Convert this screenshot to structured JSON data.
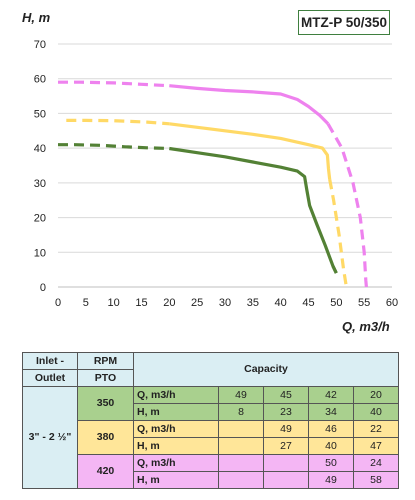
{
  "model": "MTZ-P 50/350",
  "chart_data": {
    "type": "line",
    "ylabel": "H, m",
    "xlabel": "Q, m3/h",
    "xlim": [
      0,
      60
    ],
    "ylim": [
      0,
      70
    ],
    "x_ticks": [
      0,
      5,
      10,
      15,
      20,
      25,
      30,
      35,
      40,
      45,
      50,
      55,
      60
    ],
    "y_ticks": [
      0,
      10,
      20,
      30,
      40,
      50,
      60,
      70
    ],
    "grid": "horizontal",
    "series": [
      {
        "color": "#538135",
        "dashed_points": [
          [
            0,
            41
          ],
          [
            3,
            41
          ],
          [
            8,
            40.8
          ],
          [
            12,
            40.4
          ],
          [
            16,
            40.1
          ],
          [
            20,
            39.9
          ]
        ],
        "solid_points": [
          [
            20,
            39.9
          ],
          [
            25,
            38.7
          ],
          [
            30,
            37.5
          ],
          [
            35,
            36
          ],
          [
            40,
            34.5
          ],
          [
            43,
            33.4
          ],
          [
            44.3,
            31.8
          ],
          [
            44.7,
            28
          ],
          [
            45.2,
            23.5
          ],
          [
            46.5,
            18
          ],
          [
            48,
            12
          ],
          [
            49.4,
            6
          ],
          [
            50,
            4
          ]
        ],
        "dashed_tail": [
          [
            49.4,
            6
          ],
          [
            50,
            4
          ]
        ]
      },
      {
        "color": "#ffd966",
        "dashed_points": [
          [
            1.5,
            48
          ],
          [
            5,
            48
          ],
          [
            10,
            47.9
          ],
          [
            16,
            47.5
          ],
          [
            20,
            47
          ]
        ],
        "solid_points": [
          [
            20,
            47
          ],
          [
            25,
            46
          ],
          [
            30,
            45
          ],
          [
            35,
            44
          ],
          [
            40,
            42.8
          ],
          [
            45,
            41
          ],
          [
            47.5,
            40
          ],
          [
            48.4,
            38
          ],
          [
            48.6,
            34
          ],
          [
            48.8,
            31
          ]
        ],
        "dashed_tail": [
          [
            48.8,
            31
          ],
          [
            49.5,
            25
          ],
          [
            50.5,
            15
          ],
          [
            51.3,
            5
          ],
          [
            51.8,
            0
          ]
        ]
      },
      {
        "color": "#ee82ee",
        "dashed_points": [
          [
            0,
            59
          ],
          [
            4,
            59
          ],
          [
            10,
            58.8
          ],
          [
            15,
            58.4
          ],
          [
            20,
            58
          ]
        ],
        "solid_points": [
          [
            20,
            58
          ],
          [
            25,
            57.2
          ],
          [
            30,
            56.6
          ],
          [
            35,
            56.2
          ],
          [
            40,
            55.6
          ],
          [
            43,
            54
          ],
          [
            45,
            52
          ],
          [
            47,
            49.5
          ],
          [
            48.5,
            47
          ]
        ],
        "dashed_tail": [
          [
            48.5,
            47
          ],
          [
            51,
            40
          ],
          [
            53,
            30
          ],
          [
            54.3,
            20
          ],
          [
            55,
            10
          ],
          [
            55.3,
            2
          ],
          [
            55.4,
            0
          ]
        ]
      }
    ]
  },
  "table": {
    "inlet_outlet_h1": "Inlet -",
    "inlet_outlet_h2": "Outlet",
    "rpm_h1": "RPM",
    "rpm_h2": "PTO",
    "capacity": "Capacity",
    "inlet_outlet_value": "3\" - 2 ½\"",
    "rows": [
      {
        "rpm": "350",
        "q_label": "Q, m3/h",
        "h_label": "H, m",
        "q": [
          "49",
          "45",
          "42",
          "20"
        ],
        "h": [
          "8",
          "23",
          "34",
          "40"
        ]
      },
      {
        "rpm": "380",
        "q_label": "Q, m3/h",
        "h_label": "H, m",
        "q": [
          "",
          "49",
          "46",
          "22"
        ],
        "h": [
          "",
          "27",
          "40",
          "47"
        ]
      },
      {
        "rpm": "420",
        "q_label": "Q, m3/h",
        "h_label": "H, m",
        "q": [
          "",
          "",
          "50",
          "24"
        ],
        "h": [
          "",
          "",
          "49",
          "58"
        ]
      }
    ]
  }
}
